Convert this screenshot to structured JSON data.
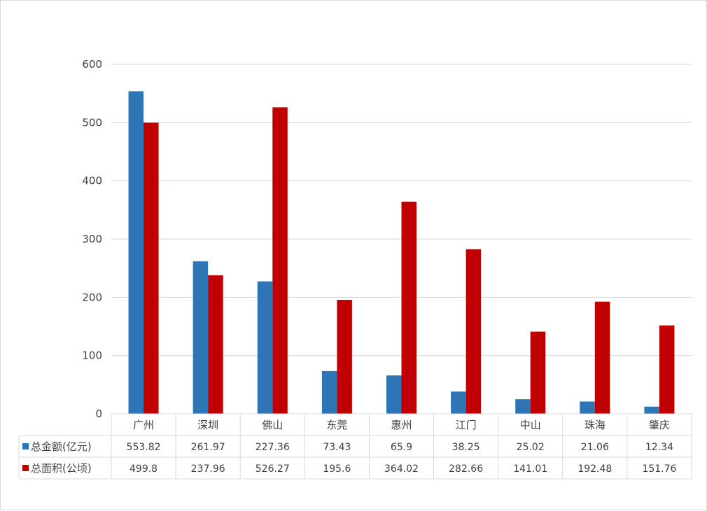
{
  "chart_data": {
    "type": "bar",
    "categories": [
      "广州",
      "深圳",
      "佛山",
      "东莞",
      "惠州",
      "江门",
      "中山",
      "珠海",
      "肇庆"
    ],
    "series": [
      {
        "name": "总金额(亿元)",
        "color": "#2E75B6",
        "values": [
          553.82,
          261.97,
          227.36,
          73.43,
          65.9,
          38.25,
          25.02,
          21.06,
          12.34
        ],
        "labels": [
          "553.82",
          "261.97",
          "227.36",
          "73.43",
          "65.9",
          "38.25",
          "25.02",
          "21.06",
          "12.34"
        ]
      },
      {
        "name": "总面积(公顷)",
        "color": "#C00000",
        "values": [
          499.8,
          237.96,
          526.27,
          195.6,
          364.02,
          282.66,
          141.01,
          192.48,
          151.76
        ],
        "labels": [
          "499.8",
          "237.96",
          "526.27",
          "195.6",
          "364.02",
          "282.66",
          "141.01",
          "192.48",
          "151.76"
        ]
      }
    ],
    "yticks": [
      "0",
      "100",
      "200",
      "300",
      "400",
      "500",
      "600"
    ],
    "ylim": [
      0,
      600
    ],
    "grid": true,
    "legend": "data-table"
  }
}
